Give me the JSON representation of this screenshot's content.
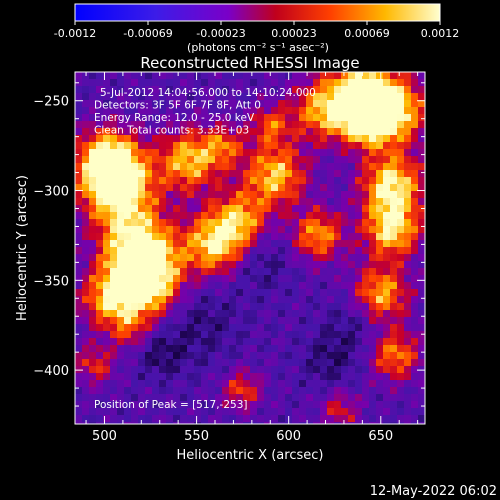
{
  "colorbar": {
    "ticks": [
      "-0.0012",
      "-0.00069",
      "-0.00023",
      "0.00023",
      "0.00069",
      "0.0012"
    ],
    "unit_label": "(photons cm⁻² s⁻¹ asec⁻²)"
  },
  "chart_data": {
    "type": "heatmap",
    "title": "Reconstructed RHESSI Image",
    "xlabel": "Heliocentric X (arcsec)",
    "ylabel": "Heliocentric Y (arcsec)",
    "xlim": [
      484,
      674
    ],
    "ylim": [
      -430,
      -234
    ],
    "x_ticks": [
      500,
      550,
      600,
      650
    ],
    "y_ticks": [
      -250,
      -300,
      -350,
      -400
    ],
    "x_tick_labels": [
      "500",
      "550",
      "600",
      "650"
    ],
    "y_tick_labels": [
      "−250",
      "−300",
      "−350",
      "−400"
    ],
    "color_range": [
      -0.0012,
      0.0012
    ],
    "annotations": [
      "5-Jul-2012 14:04:56.000 to 14:10:24.000",
      "Detectors: 3F 5F 6F 7F 8F, Att 0",
      "Energy Range: 12.0 - 25.0 keV",
      "Clean     Total counts: 3.33E+03"
    ],
    "peak_label": "Position of Peak = [517,-253]",
    "peak": [
      517,
      -253
    ]
  },
  "footer": {
    "timestamp": "12-May-2022 06:02"
  }
}
